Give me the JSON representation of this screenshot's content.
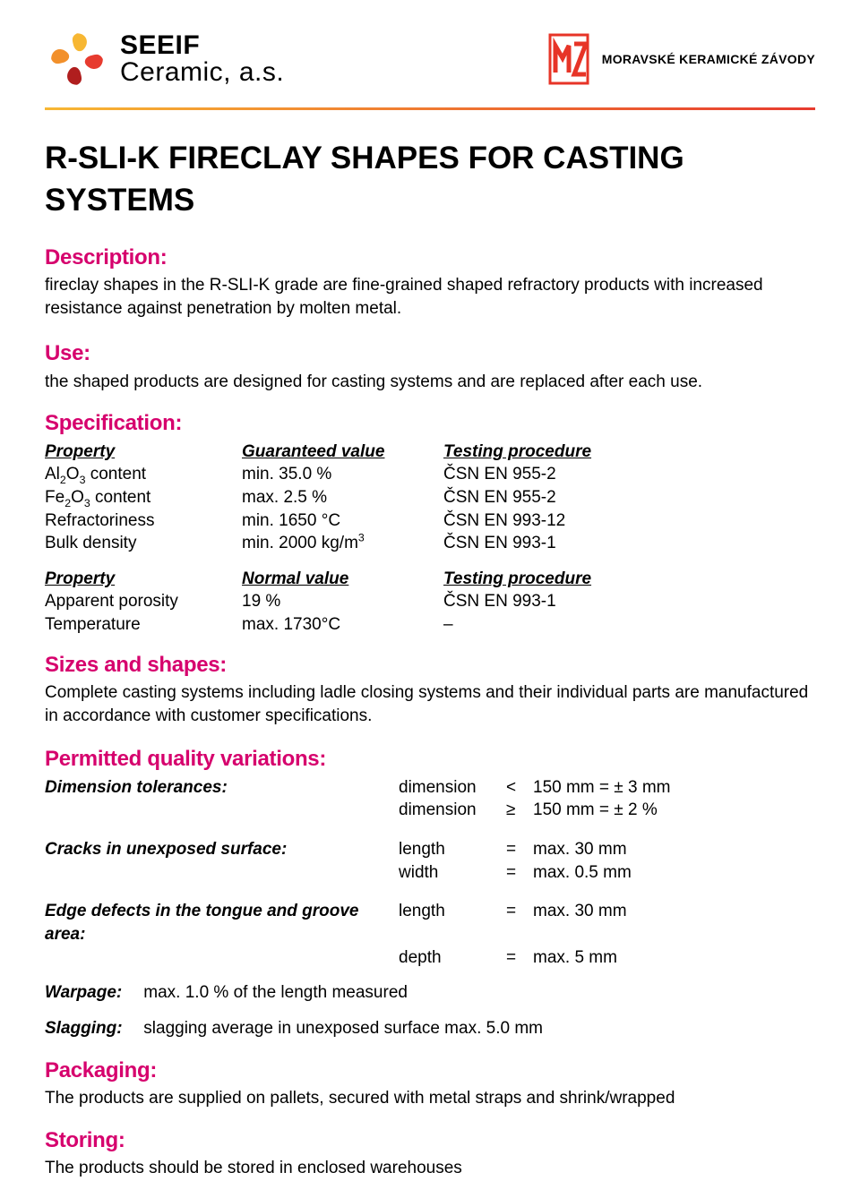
{
  "header": {
    "logo_left_line1": "SEEIF",
    "logo_left_line2": "Ceramic, a.s.",
    "logo_right_text": "MORAVSKÉ KERAMICKÉ ZÁVODY",
    "logo_left_colors": [
      "#f7b733",
      "#e73b2f",
      "#b01e1e"
    ],
    "logo_right_color": "#e73427",
    "divider_gradient_from": "#f7b733",
    "divider_gradient_to": "#e73b2f"
  },
  "title": "R-SLI-K FIRECLAY SHAPES FOR CASTING SYSTEMS",
  "accent_color": "#d6006d",
  "sections": {
    "description": {
      "heading": "Description:",
      "text": "fireclay shapes in the R-SLI-K grade are fine-grained shaped refractory products with increased resistance against penetration by molten metal."
    },
    "use": {
      "heading": "Use:",
      "text": "the shaped products are designed for casting systems and are replaced after each use."
    },
    "specification": {
      "heading": "Specification:",
      "table1": {
        "headers": [
          "Property",
          "Guaranteed value",
          "Testing procedure"
        ],
        "rows": [
          {
            "property_html": "Al<sub>2</sub>O<sub>3</sub> content",
            "value": "min. 35.0 %",
            "proc": "ČSN EN 955-2"
          },
          {
            "property_html": "Fe<sub>2</sub>O<sub>3</sub> content",
            "value": "max. 2.5 %",
            "proc": "ČSN EN 955-2"
          },
          {
            "property_html": "Refractoriness",
            "value": "min. 1650 °C",
            "proc": "ČSN EN 993-12"
          },
          {
            "property_html": "Bulk density",
            "value_html": "min. 2000 kg/m<sup>3</sup>",
            "proc": "ČSN EN 993-1"
          }
        ]
      },
      "table2": {
        "headers": [
          "Property",
          "Normal value",
          "Testing procedure"
        ],
        "rows": [
          {
            "property": "Apparent porosity",
            "value": "19 %",
            "proc": "ČSN EN 993-1"
          },
          {
            "property": "Temperature",
            "value": "max. 1730°C",
            "proc": "–"
          }
        ]
      }
    },
    "sizes": {
      "heading": "Sizes and shapes:",
      "text": "Complete casting systems including ladle closing systems and their individual parts are manufactured in accordance with customer specifications."
    },
    "variations": {
      "heading": "Permitted quality variations:",
      "dimension_tolerances": {
        "label": "Dimension tolerances:",
        "rows": [
          {
            "dim": "dimension",
            "op": "<",
            "val": "150 mm = ± 3 mm"
          },
          {
            "dim": "dimension",
            "op": "≥",
            "val": "150 mm = ± 2 %"
          }
        ]
      },
      "cracks": {
        "label": "Cracks in unexposed surface:",
        "rows": [
          {
            "dim": "length",
            "op": "=",
            "val": "max. 30 mm"
          },
          {
            "dim": "width",
            "op": "=",
            "val": "max. 0.5 mm"
          }
        ]
      },
      "edge_defects": {
        "label": "Edge defects in the tongue and groove area:",
        "rows": [
          {
            "dim": "length",
            "op": "=",
            "val": "max. 30 mm"
          },
          {
            "dim": "depth",
            "op": "=",
            "val": "max. 5 mm"
          }
        ]
      },
      "warpage": {
        "label": "Warpage:",
        "text": "max. 1.0 % of the length measured"
      },
      "slagging": {
        "label": "Slagging:",
        "text": "slagging average in unexposed surface max. 5.0 mm"
      }
    },
    "packaging": {
      "heading": "Packaging:",
      "text": "The products are supplied on pallets, secured with metal straps and shrink/wrapped"
    },
    "storing": {
      "heading": "Storing:",
      "text": "The products should be stored in enclosed warehouses"
    }
  }
}
